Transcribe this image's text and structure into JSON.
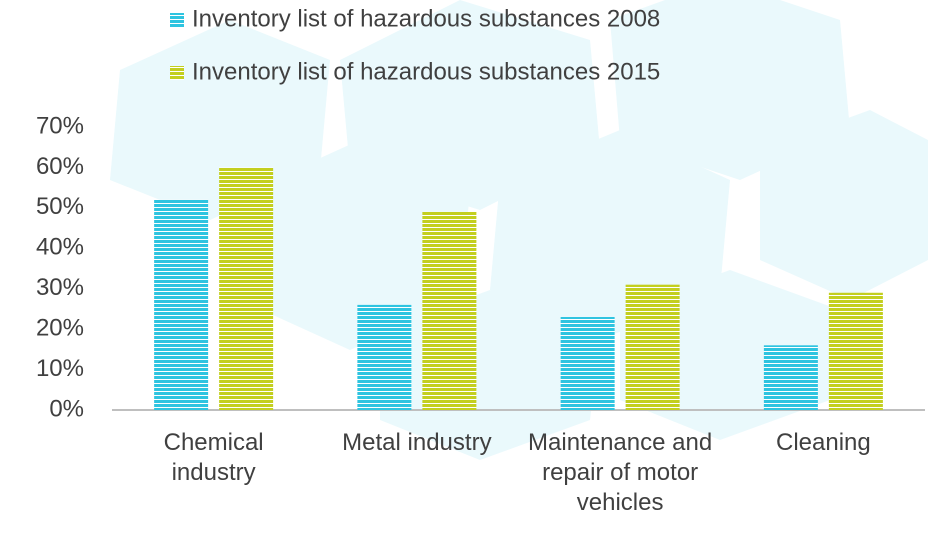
{
  "chart_data": {
    "type": "bar",
    "categories": [
      "Chemical industry",
      "Metal industry",
      "Maintenance and repair of motor vehicles",
      "Cleaning"
    ],
    "series": [
      {
        "name": "Inventory list of hazardous substances 2008",
        "color": "#2ec4e0",
        "values": [
          52,
          26,
          23,
          16
        ]
      },
      {
        "name": "Inventory list of hazardous substances 2015",
        "color": "#c3cf1f",
        "values": [
          60,
          49,
          31,
          29
        ]
      }
    ],
    "ylim": [
      0,
      70
    ],
    "yticks": [
      {
        "value": 0,
        "label": "0%"
      },
      {
        "value": 10,
        "label": "10%"
      },
      {
        "value": 20,
        "label": "20%"
      },
      {
        "value": 30,
        "label": "30%"
      },
      {
        "value": 40,
        "label": "40%"
      },
      {
        "value": 50,
        "label": "50%"
      },
      {
        "value": 60,
        "label": "60%"
      },
      {
        "value": 70,
        "label": "70%"
      }
    ],
    "legend": "top"
  }
}
